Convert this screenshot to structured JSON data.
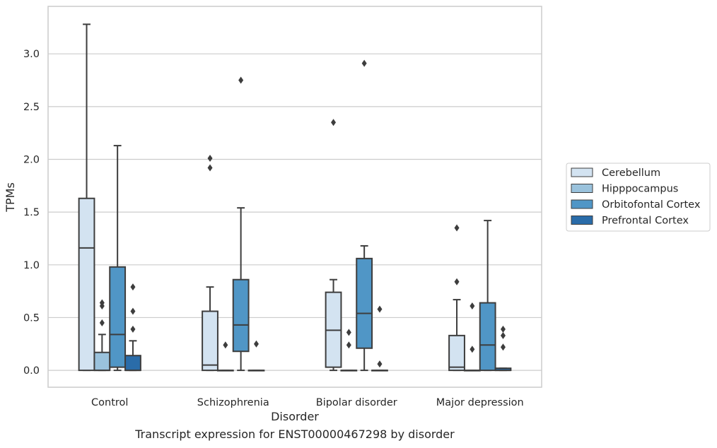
{
  "chart_data": {
    "type": "box",
    "xlabel": "Disorder",
    "ylabel": "TPMs",
    "caption": "Transcript expression for ENST00000467298 by disorder",
    "ylim": [
      -0.16,
      3.45
    ],
    "yticks": [
      "0.0",
      "0.5",
      "1.0",
      "1.5",
      "2.0",
      "2.5",
      "3.0"
    ],
    "grid": "horizontal",
    "legend_position": "right",
    "categories": [
      "Control",
      "Schizophrenia",
      "Bipolar disorder",
      "Major depression"
    ],
    "series": [
      {
        "name": "Cerebellum",
        "color": "#d3e3f1",
        "boxes": [
          {
            "min": 0.0,
            "q1": 0.0,
            "median": 1.16,
            "q3": 1.63,
            "max": 3.28,
            "outliers": []
          },
          {
            "min": 0.0,
            "q1": 0.0,
            "median": 0.05,
            "q3": 0.56,
            "max": 0.79,
            "outliers": [
              1.92,
              2.01
            ]
          },
          {
            "min": 0.0,
            "q1": 0.03,
            "median": 0.38,
            "q3": 0.74,
            "max": 0.86,
            "outliers": [
              2.35
            ]
          },
          {
            "min": 0.0,
            "q1": 0.0,
            "median": 0.03,
            "q3": 0.33,
            "max": 0.67,
            "outliers": [
              0.84,
              1.35
            ]
          }
        ]
      },
      {
        "name": "Hipppocampus",
        "color": "#9ac2dc",
        "boxes": [
          {
            "min": 0.0,
            "q1": 0.0,
            "median": 0.0,
            "q3": 0.17,
            "max": 0.34,
            "outliers": [
              0.45,
              0.61,
              0.64
            ]
          },
          {
            "min": 0.0,
            "q1": 0.0,
            "median": 0.0,
            "q3": 0.0,
            "max": 0.0,
            "outliers": [
              0.24
            ]
          },
          {
            "min": 0.0,
            "q1": 0.0,
            "median": 0.0,
            "q3": 0.0,
            "max": 0.0,
            "outliers": [
              0.24,
              0.36
            ]
          },
          {
            "min": 0.0,
            "q1": 0.0,
            "median": 0.0,
            "q3": 0.0,
            "max": 0.0,
            "outliers": [
              0.2,
              0.61
            ]
          }
        ]
      },
      {
        "name": "Orbitofontal Cortex",
        "color": "#5096c6",
        "boxes": [
          {
            "min": 0.0,
            "q1": 0.03,
            "median": 0.34,
            "q3": 0.98,
            "max": 2.13,
            "outliers": []
          },
          {
            "min": 0.0,
            "q1": 0.18,
            "median": 0.43,
            "q3": 0.86,
            "max": 1.54,
            "outliers": [
              2.75
            ]
          },
          {
            "min": 0.0,
            "q1": 0.21,
            "median": 0.54,
            "q3": 1.06,
            "max": 1.18,
            "outliers": [
              2.91
            ]
          },
          {
            "min": 0.0,
            "q1": 0.0,
            "median": 0.24,
            "q3": 0.64,
            "max": 1.42,
            "outliers": []
          }
        ]
      },
      {
        "name": "Prefrontal Cortex",
        "color": "#2a6ca9",
        "boxes": [
          {
            "min": 0.0,
            "q1": 0.0,
            "median": 0.0,
            "q3": 0.14,
            "max": 0.28,
            "outliers": [
              0.39,
              0.56,
              0.79
            ]
          },
          {
            "min": 0.0,
            "q1": 0.0,
            "median": 0.0,
            "q3": 0.0,
            "max": 0.0,
            "outliers": [
              0.25
            ]
          },
          {
            "min": 0.0,
            "q1": 0.0,
            "median": 0.0,
            "q3": 0.0,
            "max": 0.0,
            "outliers": [
              0.06,
              0.58
            ]
          },
          {
            "min": 0.0,
            "q1": 0.0,
            "median": 0.0,
            "q3": 0.02,
            "max": 0.02,
            "outliers": [
              0.22,
              0.33,
              0.39
            ]
          }
        ]
      }
    ]
  }
}
